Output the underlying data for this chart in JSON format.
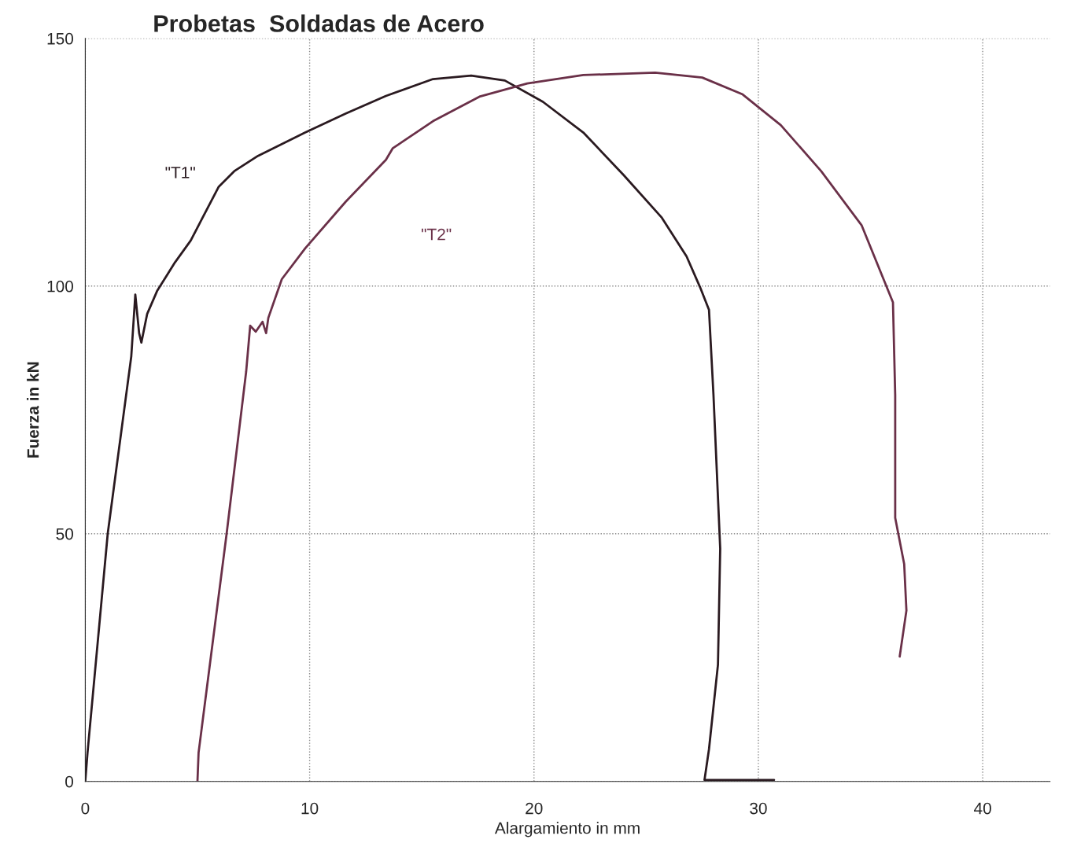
{
  "chart_data": {
    "type": "line",
    "title": "Probetas  Soldadas de Acero",
    "xlabel": "Alargamiento in mm",
    "ylabel": "Fuerza in kN",
    "xlim": [
      0,
      43
    ],
    "ylim": [
      0,
      150
    ],
    "xticks": [
      0,
      10,
      20,
      30,
      40
    ],
    "yticks": [
      0,
      50,
      100,
      150
    ],
    "grid": true,
    "line_style": "solid",
    "marker": "none",
    "series": [
      {
        "name": "\"T1\"",
        "color": "#2a1a20",
        "x": [
          0,
          0.1,
          1.0,
          2.05,
          2.23,
          2.4,
          2.5,
          2.76,
          3.2,
          3.64,
          4.0,
          4.7,
          5.94,
          6.64,
          7.7,
          9.8,
          11.6,
          13.4,
          15.5,
          17.2,
          18.7,
          20.4,
          22.2,
          24.0,
          25.7,
          26.8,
          27.4,
          27.8,
          28.0,
          28.3,
          28.2,
          27.8,
          27.6,
          30.7
        ],
        "values": [
          0,
          5.8,
          50,
          85.8,
          98.3,
          90.5,
          88.6,
          94.4,
          99,
          102.2,
          104.8,
          109.2,
          120,
          123.2,
          126.3,
          131,
          134.8,
          138.4,
          141.8,
          142.5,
          141.5,
          137.2,
          131,
          122.4,
          113.8,
          106,
          99.8,
          95.2,
          78,
          47,
          23.6,
          6.5,
          0.3,
          0.3
        ]
      },
      {
        "name": "\"T2\"",
        "color": "#6a3048",
        "x": [
          5.0,
          5.05,
          6.3,
          7.17,
          7.35,
          7.6,
          7.9,
          8.06,
          8.16,
          8.76,
          9.8,
          11.6,
          13.4,
          13.7,
          15.5,
          17.6,
          19.7,
          22.2,
          25.4,
          27.5,
          29.3,
          31.0,
          32.8,
          34.6,
          36.0,
          36.1,
          36.1,
          36.5,
          36.6,
          36.3
        ],
        "values": [
          0,
          5.8,
          50,
          82.7,
          92,
          90.8,
          92.8,
          90.5,
          93.6,
          101.4,
          107.6,
          117,
          125.5,
          127.8,
          133.3,
          138.3,
          140.9,
          142.6,
          143.1,
          142.1,
          138.7,
          132.5,
          123.2,
          112.3,
          96.7,
          78,
          53.2,
          43.9,
          34.5,
          25.2
        ]
      }
    ]
  }
}
